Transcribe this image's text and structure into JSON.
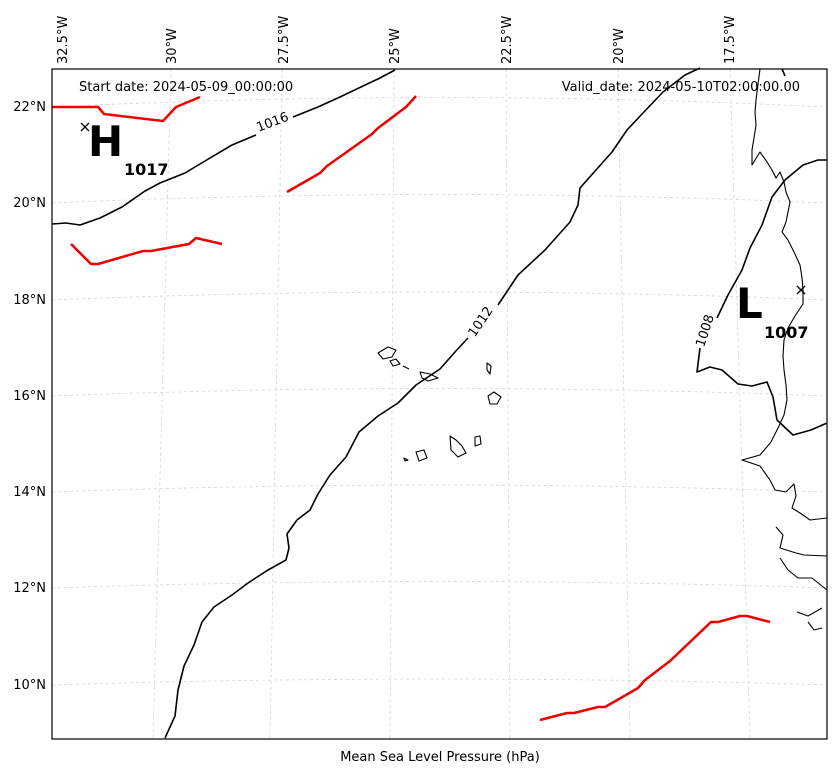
{
  "header": {
    "start_date": "Start date: 2024-05-09_00:00:00",
    "valid_date": "Valid_date: 2024-05-10T02:00:00.00"
  },
  "xlabel": "Mean Sea Level Pressure (hPa)",
  "lon_ticks": [
    "32.5°W",
    "30°W",
    "27.5°W",
    "25°W",
    "22.5°W",
    "20°W",
    "17.5°W"
  ],
  "lat_ticks": [
    "22°N",
    "20°N",
    "18°N",
    "16°N",
    "14°N",
    "12°N",
    "10°N"
  ],
  "isobars": [
    {
      "value": "1016",
      "label": "1016"
    },
    {
      "value": "1012",
      "label": "1012"
    },
    {
      "value": "1008",
      "label": "1008"
    }
  ],
  "pressure_centers": [
    {
      "type": "H",
      "value": "1017"
    },
    {
      "type": "L",
      "value": "1007"
    }
  ],
  "colors": {
    "isobar": "#000000",
    "front": "#ee0000",
    "grid": "#cccccc",
    "coast": "#000000"
  }
}
